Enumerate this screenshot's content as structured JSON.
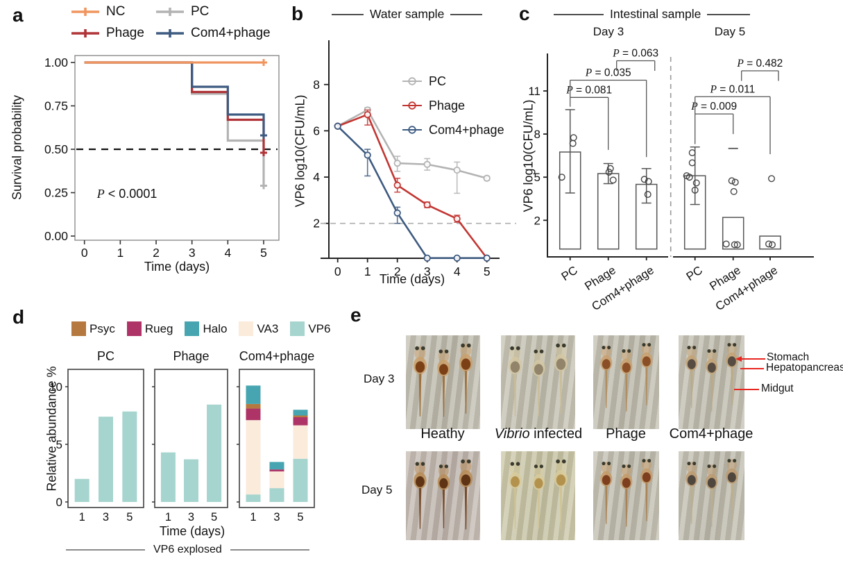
{
  "colors": {
    "nc_orange": "#F0955F",
    "pc_gray": "#B3B3B3",
    "phage_red": "#AF3337",
    "phage_red_bright": "#C23632",
    "com4_blue": "#3D5A80",
    "annotation_red": "#E8251F",
    "axis_dark": "#222222"
  },
  "panels": {
    "a": {
      "label": "a",
      "legend": [
        {
          "label": "NC",
          "color": "#F0955F"
        },
        {
          "label": "PC",
          "color": "#B3B3B3"
        },
        {
          "label": "Phage",
          "color": "#AF3337"
        },
        {
          "label": "Com4+phage",
          "color": "#3D5A80"
        }
      ]
    },
    "b": {
      "label": "b"
    },
    "c": {
      "label": "c"
    },
    "d": {
      "label": "d"
    },
    "e": {
      "label": "e",
      "row_labels": [
        "Day 3",
        "Day 5"
      ],
      "col_labels": [
        "Heathy",
        "Vibrio infected",
        "Phage",
        "Com4+phage"
      ],
      "annotations": [
        "Stomach",
        "Hepatopancreas",
        "Midgut"
      ],
      "annotation_color": "#E8251F",
      "photo_palettes": [
        [
          {
            "bg1": "#c6c2b6",
            "bg2": "#b7b4a6",
            "body": "#caa06b",
            "organ": "#7c4017",
            "tail": "#9a6a33"
          },
          {
            "bg1": "#c8c5b6",
            "bg2": "#bbb8a8",
            "body": "#d3c7a2",
            "organ": "#91846a",
            "tail": "#c9bd96"
          },
          {
            "bg1": "#c5c2b4",
            "bg2": "#b8b5a7",
            "body": "#c9a06d",
            "organ": "#8a4f26",
            "tail": "#b08a58"
          },
          {
            "bg1": "#c6c3b5",
            "bg2": "#b9b6a8",
            "body": "#c3a274",
            "organ": "#564c42",
            "tail": "#bfa87c"
          }
        ],
        [
          {
            "bg1": "#c7bdb5",
            "bg2": "#b9afa7",
            "body": "#b98c55",
            "organ": "#5f3414",
            "tail": "#6e3f1c"
          },
          {
            "bg1": "#cdc9ab",
            "bg2": "#c1bd9e",
            "body": "#d8cb9b",
            "organ": "#b3924d",
            "tail": "#cfc291"
          },
          {
            "bg1": "#c6c3b5",
            "bg2": "#b8b5a7",
            "body": "#c59a66",
            "organ": "#7d3f1e",
            "tail": "#a97e4e"
          },
          {
            "bg1": "#c5c2b4",
            "bg2": "#b7b4a6",
            "body": "#bd9a6e",
            "organ": "#4f463e",
            "tail": "#c0ae87"
          }
        ]
      ]
    }
  },
  "chart_data": [
    {
      "id": "survival",
      "type": "line",
      "panel": "a",
      "title": "",
      "xlabel": "Time (days)",
      "ylabel": "Survival probability",
      "xlim": [
        -0.25,
        5.25
      ],
      "ylim": [
        -0.02,
        1.04
      ],
      "xticks": [
        0,
        1,
        2,
        3,
        4,
        5
      ],
      "yticks": [
        1.0,
        0.75,
        0.5,
        0.25,
        0.0
      ],
      "ytick_labels": [
        "1.00",
        "0.75",
        "0.50",
        "0.25",
        "0.00"
      ],
      "hline": 0.5,
      "annotation": {
        "text": "P < 0.0001",
        "x": 0.35,
        "y": 0.22
      },
      "legend_position": "top",
      "grid": false,
      "series": [
        {
          "name": "PC",
          "color": "#B3B3B3",
          "steps": [
            [
              0,
              1
            ],
            [
              3,
              1
            ],
            [
              3,
              0.82
            ],
            [
              4,
              0.82
            ],
            [
              4,
              0.55
            ],
            [
              5,
              0.55
            ],
            [
              5,
              0.29
            ]
          ],
          "censor": [
            [
              5,
              0.29
            ]
          ]
        },
        {
          "name": "Phage",
          "color": "#AF3337",
          "steps": [
            [
              0,
              1
            ],
            [
              3,
              1
            ],
            [
              3,
              0.83
            ],
            [
              4,
              0.83
            ],
            [
              4,
              0.67
            ],
            [
              5,
              0.67
            ],
            [
              5,
              0.48
            ]
          ],
          "censor": [
            [
              5,
              0.48
            ]
          ]
        },
        {
          "name": "Com4+phage",
          "color": "#3D5A80",
          "steps": [
            [
              0,
              1
            ],
            [
              3,
              1
            ],
            [
              3,
              0.86
            ],
            [
              4,
              0.86
            ],
            [
              4,
              0.7
            ],
            [
              5,
              0.7
            ],
            [
              5,
              0.58
            ]
          ],
          "censor": [
            [
              5,
              0.58
            ]
          ]
        },
        {
          "name": "NC",
          "color": "#F0955F",
          "steps": [
            [
              0,
              1
            ],
            [
              5,
              1
            ]
          ],
          "censor": [
            [
              5,
              1
            ]
          ]
        }
      ]
    },
    {
      "id": "water",
      "type": "line",
      "panel": "b",
      "title": "Water sample",
      "xlabel": "Time (days)",
      "ylabel": "VP6 log10(CFU/mL)",
      "x": [
        0,
        1,
        2,
        3,
        4,
        5
      ],
      "xlim": [
        -0.3,
        5.3
      ],
      "ylim": [
        0.45,
        9.8
      ],
      "yticks": [
        2,
        4,
        6,
        8
      ],
      "hline": 2,
      "legend_position": "inside-right",
      "grid": false,
      "series": [
        {
          "name": "PC",
          "color": "#B3B3B3",
          "values": [
            6.2,
            6.9,
            4.6,
            4.55,
            4.3,
            3.95
          ],
          "err_lo": [
            0.05,
            0.1,
            0.35,
            0.25,
            1.0,
            0.08
          ],
          "err_hi": [
            0.05,
            0.1,
            0.3,
            0.25,
            0.35,
            0.08
          ]
        },
        {
          "name": "Phage",
          "color": "#C23632",
          "values": [
            6.2,
            6.7,
            3.65,
            2.8,
            2.2,
            0.5
          ],
          "err_lo": [
            0.05,
            0.45,
            0.3,
            0.12,
            0.15,
            0
          ],
          "err_hi": [
            0.05,
            0.2,
            0.3,
            0.12,
            0.15,
            0
          ]
        },
        {
          "name": "Com4+phage",
          "color": "#3D5A80",
          "values": [
            6.2,
            4.95,
            2.45,
            0.5,
            0.5,
            0.5
          ],
          "err_lo": [
            0.05,
            0.9,
            0.45,
            0,
            0,
            0
          ],
          "err_hi": [
            0.05,
            0.25,
            0.25,
            0,
            0,
            0
          ]
        }
      ]
    },
    {
      "id": "intestinal",
      "type": "bar",
      "panel": "c",
      "title": "Intestinal sample",
      "ylabel": "VP6 log10(CFU/mL)",
      "groups": [
        "Day 3",
        "Day 5"
      ],
      "categories": [
        "PC",
        "Phage",
        "Com4+phage"
      ],
      "ylim": [
        -0.6,
        13.7
      ],
      "yticks": [
        2,
        5,
        8,
        11
      ],
      "day3": {
        "bars": [
          6.75,
          5.25,
          4.5
        ],
        "err": [
          [
            3.9,
            9.7
          ],
          [
            4.55,
            5.95
          ],
          [
            3.2,
            5.6
          ]
        ],
        "points": [
          [
            [
              7.75,
              5
            ],
            [
              7.35,
              4
            ],
            [
              5.0,
              -12
            ]
          ],
          [
            [
              5.6,
              3
            ],
            [
              5.35,
              1
            ],
            [
              4.8,
              7
            ]
          ],
          [
            [
              4.85,
              -3
            ],
            [
              4.7,
              3
            ],
            [
              3.8,
              2
            ]
          ]
        ],
        "brackets": [
          {
            "label": "P = 0.081",
            "x1": 0,
            "x2": 1,
            "y": 10.55,
            "d1": 9.9,
            "d2": 6.9,
            "off": 0
          },
          {
            "label": "P = 0.035",
            "x1": 0,
            "x2": 2,
            "y": 11.75,
            "d1": 10.55,
            "d2": 6.4,
            "off": 0
          },
          {
            "label": "P = 0.063",
            "x1": 1,
            "x2": 2,
            "y": 13.1,
            "d1": 12.4,
            "d2": 12.4,
            "off": 12
          }
        ]
      },
      "day5": {
        "bars": [
          5.1,
          2.2,
          0.9
        ],
        "err": [
          [
            3.1,
            7.1
          ],
          [
            null,
            7.0
          ],
          [
            null,
            null
          ]
        ],
        "points": [
          [
            [
              6.7,
              -4
            ],
            [
              6.0,
              -4
            ],
            [
              5.1,
              -12
            ],
            [
              5.0,
              -8
            ],
            [
              4.6,
              2
            ],
            [
              4.1,
              0
            ]
          ],
          [
            [
              4.75,
              -2
            ],
            [
              4.65,
              3
            ],
            [
              4.0,
              1
            ],
            [
              0.35,
              -10
            ],
            [
              0.3,
              2
            ],
            [
              0.3,
              6
            ]
          ],
          [
            [
              4.9,
              2
            ],
            [
              0.35,
              -2
            ],
            [
              0.3,
              3
            ]
          ]
        ],
        "brackets": [
          {
            "label": "P = 0.009",
            "x1": 0,
            "x2": 1,
            "y": 9.4,
            "d1": 7.3,
            "d2": 8.0,
            "off": 0
          },
          {
            "label": "P = 0.011",
            "x1": 0,
            "x2": 2,
            "y": 10.6,
            "d1": 9.4,
            "d2": 6.6,
            "off": 0
          },
          {
            "label": "P = 0.482",
            "x1": 1,
            "x2": 2,
            "y": 12.4,
            "d1": 11.7,
            "d2": 11.7,
            "off": 12
          }
        ]
      }
    },
    {
      "id": "abundance",
      "type": "stacked-bar",
      "panel": "d",
      "ylabel": "Relative abundance %",
      "xlabel": "Time (days)",
      "footer": "VP6 explosed",
      "taxa": [
        "Psyc",
        "Rueg",
        "Halo",
        "VA3",
        "VP6"
      ],
      "taxa_colors": {
        "Psyc": "#B5793F",
        "Rueg": "#AE3367",
        "Halo": "#46A5B0",
        "VA3": "#FAEBDB",
        "VP6": "#A6D4CE"
      },
      "stack_order": [
        "VP6",
        "VA3",
        "Rueg",
        "Psyc",
        "Halo"
      ],
      "days": [
        1,
        3,
        5
      ],
      "ylim": [
        0,
        11.5
      ],
      "yticks": [
        0,
        5,
        10
      ],
      "subpanels": [
        {
          "name": "PC",
          "stacks": [
            {
              "VP6": 2.0
            },
            {
              "VP6": 7.4
            },
            {
              "VP6": 7.85
            }
          ]
        },
        {
          "name": "Phage",
          "stacks": [
            {
              "VP6": 4.3
            },
            {
              "VP6": 3.7
            },
            {
              "VP6": 8.45
            }
          ]
        },
        {
          "name": "Com4+phage",
          "stacks": [
            {
              "VP6": 0.65,
              "VA3": 6.45,
              "Rueg": 1.0,
              "Psyc": 0.4,
              "Halo": 1.6
            },
            {
              "VP6": 1.2,
              "VA3": 1.45,
              "Rueg": 0.17,
              "Halo": 0.65
            },
            {
              "VP6": 3.75,
              "VA3": 2.9,
              "Rueg": 0.7,
              "Psyc": 0.15,
              "Halo": 0.5
            }
          ]
        }
      ]
    }
  ]
}
